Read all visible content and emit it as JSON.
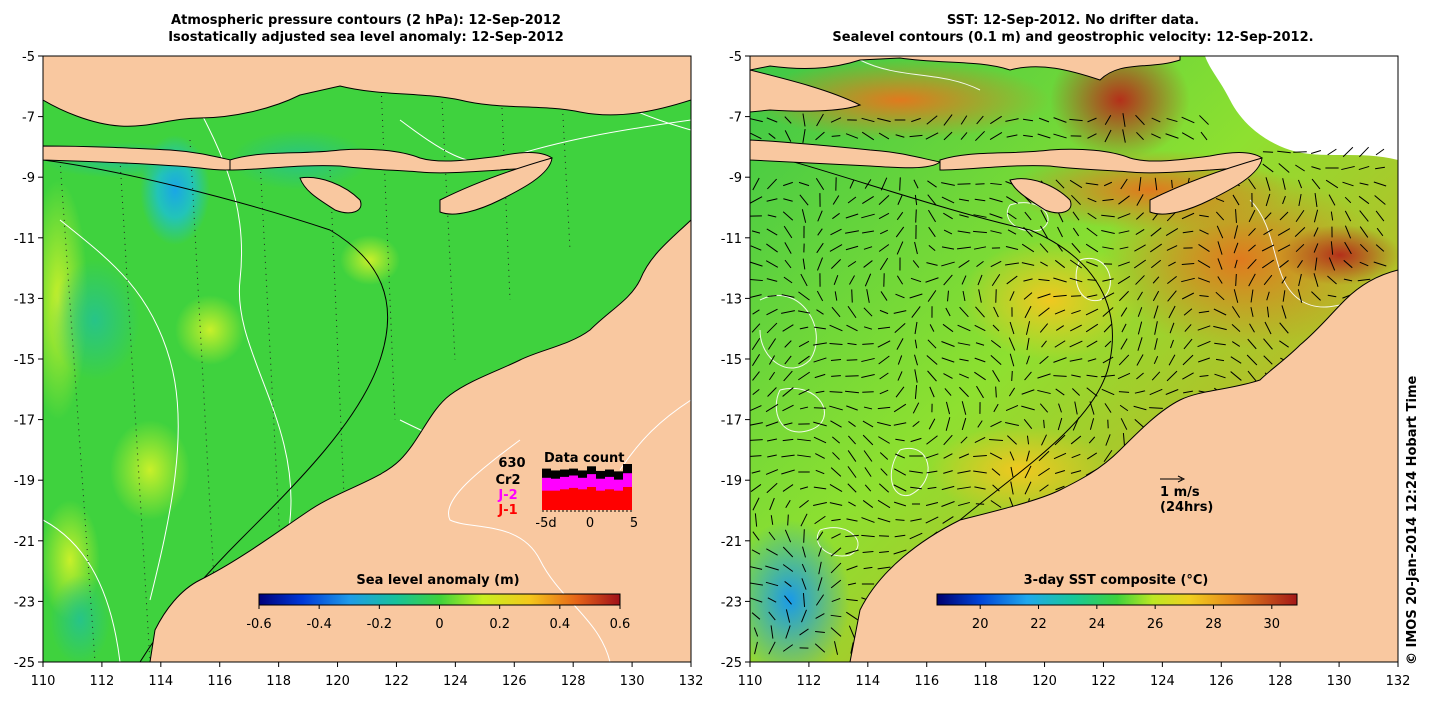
{
  "left_panel": {
    "title_line1": "Atmospheric pressure contours (2 hPa): 12-Sep-2012",
    "title_line2": "Isostatically adjusted sea level anomaly: 12-Sep-2012",
    "lon_ticks": [
      "110",
      "112",
      "114",
      "116",
      "118",
      "120",
      "122",
      "124",
      "126",
      "128",
      "130",
      "132"
    ],
    "lat_ticks": [
      "-5",
      "-7",
      "-9",
      "-11",
      "-13",
      "-15",
      "-17",
      "-19",
      "-21",
      "-23",
      "-25"
    ],
    "colorbar": {
      "title": "Sea level anomaly (m)",
      "ticks": [
        "-0.6",
        "-0.4",
        "-0.2",
        "0",
        "0.2",
        "0.4",
        "0.6"
      ]
    },
    "data_count": {
      "title": "Data count",
      "max_label": "630",
      "series": [
        {
          "name": "Cr2",
          "color": "#000000"
        },
        {
          "name": "J-2",
          "color": "#ff00ff"
        },
        {
          "name": "J-1",
          "color": "#ff0000"
        }
      ],
      "x_labels": [
        "-5d",
        "0",
        "5"
      ],
      "bars": [
        {
          "j1": 0.42,
          "j2": 0.7,
          "cr2": 0.9
        },
        {
          "j1": 0.42,
          "j2": 0.68,
          "cr2": 0.86
        },
        {
          "j1": 0.45,
          "j2": 0.72,
          "cr2": 0.88
        },
        {
          "j1": 0.48,
          "j2": 0.75,
          "cr2": 0.9
        },
        {
          "j1": 0.45,
          "j2": 0.7,
          "cr2": 0.86
        },
        {
          "j1": 0.5,
          "j2": 0.78,
          "cr2": 0.95
        },
        {
          "j1": 0.42,
          "j2": 0.68,
          "cr2": 0.85
        },
        {
          "j1": 0.45,
          "j2": 0.72,
          "cr2": 0.88
        },
        {
          "j1": 0.42,
          "j2": 0.66,
          "cr2": 0.84
        },
        {
          "j1": 0.5,
          "j2": 0.8,
          "cr2": 1.0
        }
      ]
    }
  },
  "right_panel": {
    "title_line1": "SST: 12-Sep-2012. No drifter data.",
    "title_line2": "Sealevel contours (0.1 m) and geostrophic velocity: 12-Sep-2012.",
    "lon_ticks": [
      "110",
      "112",
      "114",
      "116",
      "118",
      "120",
      "122",
      "124",
      "126",
      "128",
      "130",
      "132"
    ],
    "lat_ticks": [
      "-5",
      "-7",
      "-9",
      "-11",
      "-13",
      "-15",
      "-17",
      "-19",
      "-21",
      "-23",
      "-25"
    ],
    "colorbar": {
      "title": "3-day SST composite (°C)",
      "ticks": [
        "20",
        "22",
        "24",
        "26",
        "28",
        "30"
      ]
    },
    "velocity_scale": {
      "label_line1": "1 m/s",
      "label_line2": "(24hrs)"
    }
  },
  "credit": "© IMOS 20-Jan-2014 12:24 Hobart Time",
  "colors": {
    "land": "#f9c8a0",
    "ocean_green": "#3dd23d",
    "sst_orange": "#e8901e",
    "sst_red": "#c0401a",
    "contour_white": "#ffffff"
  }
}
